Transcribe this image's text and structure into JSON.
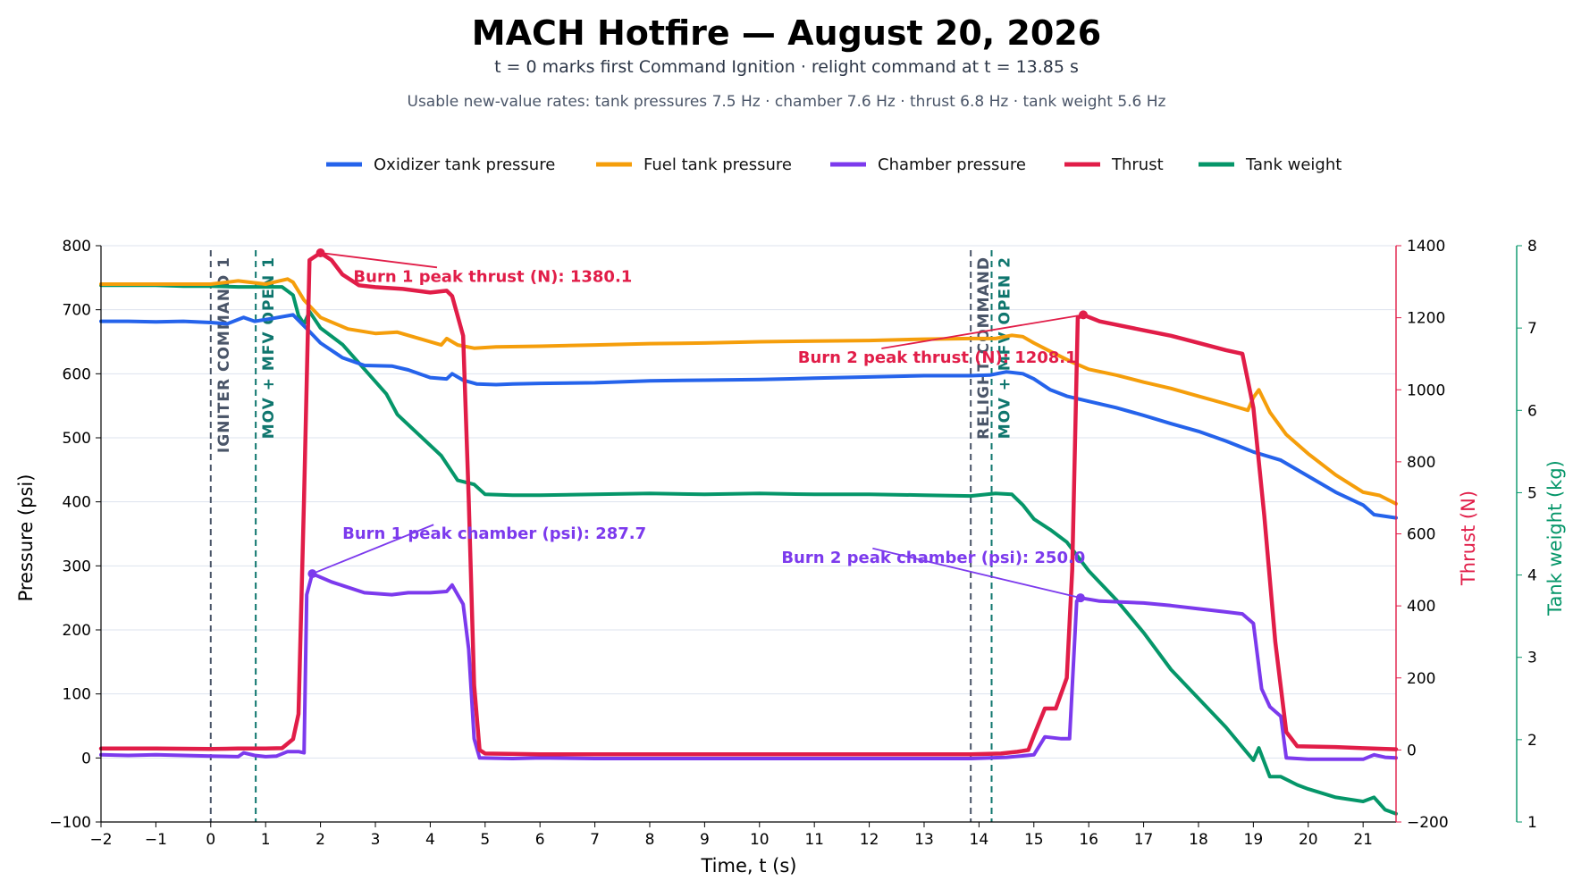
{
  "chart_data": {
    "type": "line",
    "title": "MACH Hotfire — August 20, 2026",
    "subtitle": "t = 0 marks first Command Ignition · relight command at t = 13.85 s",
    "subtitle2": "Usable new-value rates: tank pressures 7.5 Hz · chamber 7.6 Hz · thrust 6.8 Hz · tank weight 5.6 Hz",
    "xlabel": "Time, t (s)",
    "ylabel": "Pressure (psi)",
    "y2label": "Thrust (N)",
    "y3label": "Tank weight (kg)",
    "xlim": [
      -2,
      21.6
    ],
    "ylim": [
      -100,
      800
    ],
    "y2lim": [
      -200,
      1400
    ],
    "y3lim": [
      1,
      8
    ],
    "xticks": [
      -2,
      -1,
      0,
      1,
      2,
      3,
      4,
      5,
      6,
      7,
      8,
      9,
      10,
      11,
      12,
      13,
      14,
      15,
      16,
      17,
      18,
      19,
      20,
      21
    ],
    "yticks": [
      -100,
      0,
      100,
      200,
      300,
      400,
      500,
      600,
      700,
      800
    ],
    "y2ticks": [
      -200,
      0,
      200,
      400,
      600,
      800,
      1000,
      1200,
      1400
    ],
    "y3ticks": [
      1,
      2,
      3,
      4,
      5,
      6,
      7,
      8
    ],
    "tick_labels_y": [
      "−100",
      "0",
      "100",
      "200",
      "300",
      "400",
      "500",
      "600",
      "700",
      "800"
    ],
    "tick_labels_y2": [
      "−200",
      "0",
      "200",
      "400",
      "600",
      "800",
      "1000",
      "1200",
      "1400"
    ],
    "tick_labels_y3": [
      "1",
      "2",
      "3",
      "4",
      "5",
      "6",
      "7",
      "8"
    ],
    "tick_labels_x": [
      "−2",
      "−1",
      "0",
      "1",
      "2",
      "3",
      "4",
      "5",
      "6",
      "7",
      "8",
      "9",
      "10",
      "11",
      "12",
      "13",
      "14",
      "15",
      "16",
      "17",
      "18",
      "19",
      "20",
      "21"
    ],
    "grid": "horizontal",
    "legend": "top-center",
    "colors": {
      "oxidizer": "#2563eb",
      "fuel": "#f59e0b",
      "chamber": "#7c3aed",
      "thrust": "#e11d48",
      "weight": "#059669",
      "event_gray": "#4a5568",
      "event_teal": "#0f766e"
    },
    "series": [
      {
        "name": "Oxidizer tank pressure",
        "axis": "left",
        "color": "#2563eb",
        "points": [
          [
            -2,
            682
          ],
          [
            -1.5,
            682
          ],
          [
            -1,
            681
          ],
          [
            -0.5,
            682
          ],
          [
            0,
            680
          ],
          [
            0.3,
            678
          ],
          [
            0.6,
            688
          ],
          [
            0.8,
            682
          ],
          [
            1.1,
            686
          ],
          [
            1.5,
            692
          ],
          [
            1.8,
            666
          ],
          [
            2,
            648
          ],
          [
            2.4,
            625
          ],
          [
            2.8,
            613
          ],
          [
            3.3,
            612
          ],
          [
            3.6,
            606
          ],
          [
            4,
            594
          ],
          [
            4.3,
            592
          ],
          [
            4.4,
            600
          ],
          [
            4.6,
            590
          ],
          [
            4.85,
            584
          ],
          [
            5.2,
            583
          ],
          [
            5.5,
            584
          ],
          [
            6,
            585
          ],
          [
            7,
            586
          ],
          [
            8,
            589
          ],
          [
            9,
            590
          ],
          [
            10,
            591
          ],
          [
            11,
            593
          ],
          [
            12,
            595
          ],
          [
            13,
            597
          ],
          [
            13.85,
            597
          ],
          [
            14.2,
            598
          ],
          [
            14.5,
            603
          ],
          [
            14.8,
            600
          ],
          [
            15,
            592
          ],
          [
            15.3,
            575
          ],
          [
            15.6,
            565
          ],
          [
            16,
            557
          ],
          [
            16.5,
            547
          ],
          [
            17,
            535
          ],
          [
            17.5,
            522
          ],
          [
            18,
            510
          ],
          [
            18.5,
            495
          ],
          [
            19,
            478
          ],
          [
            19.5,
            465
          ],
          [
            20,
            440
          ],
          [
            20.5,
            415
          ],
          [
            21,
            395
          ],
          [
            21.2,
            380
          ],
          [
            21.6,
            375
          ]
        ]
      },
      {
        "name": "Fuel tank pressure",
        "axis": "left",
        "color": "#f59e0b",
        "points": [
          [
            -2,
            740
          ],
          [
            -1.5,
            740
          ],
          [
            -1,
            740
          ],
          [
            -0.5,
            740
          ],
          [
            0,
            740
          ],
          [
            0.5,
            745
          ],
          [
            1,
            740
          ],
          [
            1.4,
            748
          ],
          [
            1.5,
            743
          ],
          [
            1.7,
            715
          ],
          [
            2,
            688
          ],
          [
            2.5,
            670
          ],
          [
            3,
            663
          ],
          [
            3.4,
            665
          ],
          [
            3.8,
            655
          ],
          [
            4.2,
            645
          ],
          [
            4.3,
            655
          ],
          [
            4.5,
            645
          ],
          [
            4.8,
            640
          ],
          [
            5.2,
            642
          ],
          [
            6,
            643
          ],
          [
            7,
            645
          ],
          [
            8,
            647
          ],
          [
            9,
            648
          ],
          [
            10,
            650
          ],
          [
            11,
            651
          ],
          [
            12,
            652
          ],
          [
            13,
            654
          ],
          [
            13.85,
            655
          ],
          [
            14,
            655
          ],
          [
            14.3,
            655
          ],
          [
            14.6,
            660
          ],
          [
            14.8,
            658
          ],
          [
            15,
            648
          ],
          [
            15.3,
            635
          ],
          [
            15.7,
            618
          ],
          [
            16,
            607
          ],
          [
            16.5,
            598
          ],
          [
            17,
            587
          ],
          [
            17.5,
            577
          ],
          [
            18,
            565
          ],
          [
            18.5,
            553
          ],
          [
            18.9,
            543
          ],
          [
            19,
            563
          ],
          [
            19.1,
            575
          ],
          [
            19.3,
            540
          ],
          [
            19.6,
            505
          ],
          [
            20,
            475
          ],
          [
            20.5,
            442
          ],
          [
            21,
            415
          ],
          [
            21.3,
            410
          ],
          [
            21.6,
            397
          ]
        ]
      },
      {
        "name": "Chamber pressure",
        "axis": "left",
        "color": "#7c3aed",
        "points": [
          [
            -2,
            5
          ],
          [
            -1.5,
            4
          ],
          [
            -1,
            5
          ],
          [
            -0.5,
            4
          ],
          [
            0,
            3
          ],
          [
            0.5,
            2
          ],
          [
            0.6,
            8
          ],
          [
            0.8,
            4
          ],
          [
            1,
            2
          ],
          [
            1.2,
            3
          ],
          [
            1.4,
            10
          ],
          [
            1.6,
            10
          ],
          [
            1.7,
            8
          ],
          [
            1.75,
            255
          ],
          [
            1.85,
            287.7
          ],
          [
            2.2,
            275
          ],
          [
            2.8,
            258
          ],
          [
            3.3,
            255
          ],
          [
            3.6,
            258
          ],
          [
            4,
            258
          ],
          [
            4.3,
            260
          ],
          [
            4.4,
            270
          ],
          [
            4.6,
            240
          ],
          [
            4.7,
            170
          ],
          [
            4.8,
            30
          ],
          [
            4.9,
            0
          ],
          [
            5.5,
            -1
          ],
          [
            6,
            0
          ],
          [
            7,
            -1
          ],
          [
            8,
            -1
          ],
          [
            9,
            -1
          ],
          [
            10,
            -1
          ],
          [
            11,
            -1
          ],
          [
            12,
            -1
          ],
          [
            13,
            -1
          ],
          [
            13.85,
            -1
          ],
          [
            14.5,
            1
          ],
          [
            15,
            5
          ],
          [
            15.2,
            33
          ],
          [
            15.5,
            30
          ],
          [
            15.65,
            30
          ],
          [
            15.78,
            245
          ],
          [
            15.85,
            250.0
          ],
          [
            16.2,
            245
          ],
          [
            17,
            242
          ],
          [
            17.5,
            238
          ],
          [
            18,
            233
          ],
          [
            18.5,
            228
          ],
          [
            18.8,
            225
          ],
          [
            19,
            210
          ],
          [
            19.15,
            108
          ],
          [
            19.3,
            80
          ],
          [
            19.5,
            65
          ],
          [
            19.6,
            0
          ],
          [
            20,
            -2
          ],
          [
            21,
            -2
          ],
          [
            21.2,
            5
          ],
          [
            21.4,
            1
          ],
          [
            21.6,
            0
          ]
        ]
      },
      {
        "name": "Thrust",
        "axis": "right",
        "color": "#e11d48",
        "points": [
          [
            -2,
            4
          ],
          [
            -1,
            4
          ],
          [
            0,
            3
          ],
          [
            0.5,
            4
          ],
          [
            1,
            4
          ],
          [
            1.3,
            5
          ],
          [
            1.5,
            30
          ],
          [
            1.6,
            100
          ],
          [
            1.7,
            700
          ],
          [
            1.8,
            1360
          ],
          [
            2,
            1380.1
          ],
          [
            2.2,
            1360
          ],
          [
            2.4,
            1320
          ],
          [
            2.7,
            1290
          ],
          [
            3,
            1285
          ],
          [
            3.5,
            1280
          ],
          [
            4,
            1270
          ],
          [
            4.3,
            1275
          ],
          [
            4.4,
            1260
          ],
          [
            4.6,
            1150
          ],
          [
            4.7,
            700
          ],
          [
            4.8,
            180
          ],
          [
            4.9,
            0
          ],
          [
            5,
            -10
          ],
          [
            6,
            -12
          ],
          [
            7,
            -12
          ],
          [
            8,
            -12
          ],
          [
            9,
            -12
          ],
          [
            10,
            -12
          ],
          [
            11,
            -12
          ],
          [
            12,
            -12
          ],
          [
            13,
            -12
          ],
          [
            13.85,
            -12
          ],
          [
            14.4,
            -10
          ],
          [
            14.7,
            -5
          ],
          [
            14.9,
            0
          ],
          [
            15,
            40
          ],
          [
            15.2,
            115
          ],
          [
            15.4,
            115
          ],
          [
            15.6,
            200
          ],
          [
            15.7,
            500
          ],
          [
            15.8,
            1200
          ],
          [
            15.9,
            1208.1
          ],
          [
            16.2,
            1190
          ],
          [
            17,
            1165
          ],
          [
            17.5,
            1150
          ],
          [
            18,
            1130
          ],
          [
            18.5,
            1110
          ],
          [
            18.8,
            1100
          ],
          [
            19,
            950
          ],
          [
            19.2,
            650
          ],
          [
            19.4,
            300
          ],
          [
            19.6,
            50
          ],
          [
            19.8,
            10
          ],
          [
            20.5,
            8
          ],
          [
            21,
            5
          ],
          [
            21.6,
            2
          ]
        ]
      },
      {
        "name": "Tank weight",
        "axis": "right2",
        "color": "#059669",
        "points": [
          [
            -2,
            7.52
          ],
          [
            -1.5,
            7.52
          ],
          [
            -1,
            7.52
          ],
          [
            -0.5,
            7.51
          ],
          [
            0,
            7.51
          ],
          [
            0.5,
            7.5
          ],
          [
            1,
            7.5
          ],
          [
            1.3,
            7.5
          ],
          [
            1.5,
            7.4
          ],
          [
            1.6,
            7.15
          ],
          [
            1.7,
            7.05
          ],
          [
            1.8,
            7.2
          ],
          [
            2,
            7.0
          ],
          [
            2.4,
            6.8
          ],
          [
            2.8,
            6.5
          ],
          [
            3.2,
            6.2
          ],
          [
            3.4,
            5.95
          ],
          [
            3.8,
            5.7
          ],
          [
            4.2,
            5.45
          ],
          [
            4.5,
            5.15
          ],
          [
            4.8,
            5.1
          ],
          [
            5,
            4.98
          ],
          [
            5.5,
            4.97
          ],
          [
            6,
            4.97
          ],
          [
            7,
            4.98
          ],
          [
            8,
            4.99
          ],
          [
            9,
            4.98
          ],
          [
            10,
            4.99
          ],
          [
            11,
            4.98
          ],
          [
            12,
            4.98
          ],
          [
            13,
            4.97
          ],
          [
            13.85,
            4.96
          ],
          [
            14.3,
            4.99
          ],
          [
            14.6,
            4.98
          ],
          [
            14.8,
            4.85
          ],
          [
            15,
            4.68
          ],
          [
            15.3,
            4.55
          ],
          [
            15.6,
            4.4
          ],
          [
            16,
            4.05
          ],
          [
            16.5,
            3.7
          ],
          [
            17,
            3.3
          ],
          [
            17.5,
            2.85
          ],
          [
            18,
            2.5
          ],
          [
            18.5,
            2.15
          ],
          [
            19,
            1.75
          ],
          [
            19.1,
            1.9
          ],
          [
            19.3,
            1.55
          ],
          [
            19.5,
            1.55
          ],
          [
            19.8,
            1.45
          ],
          [
            20,
            1.4
          ],
          [
            20.5,
            1.3
          ],
          [
            21,
            1.25
          ],
          [
            21.2,
            1.3
          ],
          [
            21.4,
            1.15
          ],
          [
            21.6,
            1.1
          ]
        ]
      }
    ],
    "events": [
      {
        "t": 0,
        "label": "IGNITER COMMAND 1",
        "color": "#4a5568"
      },
      {
        "t": 0.82,
        "label": "MOV + MFV OPEN 1",
        "color": "#0f766e"
      },
      {
        "t": 13.85,
        "label": "RELIGHT COMMAND",
        "color": "#4a5568"
      },
      {
        "t": 14.23,
        "label": "MOV + MFV OPEN 2",
        "color": "#0f766e"
      }
    ],
    "annotations": [
      {
        "text": "Burn 1 peak thrust (N): 1380.1",
        "color": "#e11d48",
        "x": 2.0,
        "y": 1380.1,
        "axis": "right",
        "tx": 2.6,
        "ty": 1300
      },
      {
        "text": "Burn 2 peak thrust (N): 1208.1",
        "color": "#e11d48",
        "x": 15.9,
        "y": 1208.1,
        "axis": "right",
        "tx": 10.7,
        "ty": 1075
      },
      {
        "text": "Burn 1 peak chamber (psi): 287.7",
        "color": "#7c3aed",
        "x": 1.85,
        "y": 287.7,
        "axis": "left",
        "tx": 2.4,
        "ty": 342
      },
      {
        "text": "Burn 2 peak chamber (psi): 250.0",
        "color": "#7c3aed",
        "x": 15.85,
        "y": 250.0,
        "axis": "left",
        "tx": 10.4,
        "ty": 305
      }
    ]
  }
}
